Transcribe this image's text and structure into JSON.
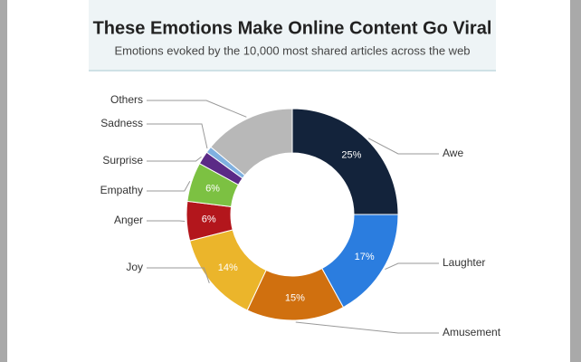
{
  "chart_data": {
    "type": "donut",
    "title": "These Emotions Make Online Content Go Viral",
    "subtitle": "Emotions evoked by the 10,000 most shared articles across the web",
    "categories": [
      "Awe",
      "Laughter",
      "Amusement",
      "Joy",
      "Anger",
      "Empathy",
      "Surprise",
      "Sadness",
      "Others"
    ],
    "values": [
      25,
      17,
      15,
      14,
      6,
      6,
      2,
      1,
      14
    ],
    "value_labels": [
      "25%",
      "17%",
      "15%",
      "14%",
      "6%",
      "6%",
      null,
      null,
      null
    ],
    "colors": [
      "#13233b",
      "#2b7ddf",
      "#d0700f",
      "#ebb52b",
      "#b3161c",
      "#7cc142",
      "#5b2a86",
      "#7fb0e0",
      "#b8b8b8"
    ]
  }
}
